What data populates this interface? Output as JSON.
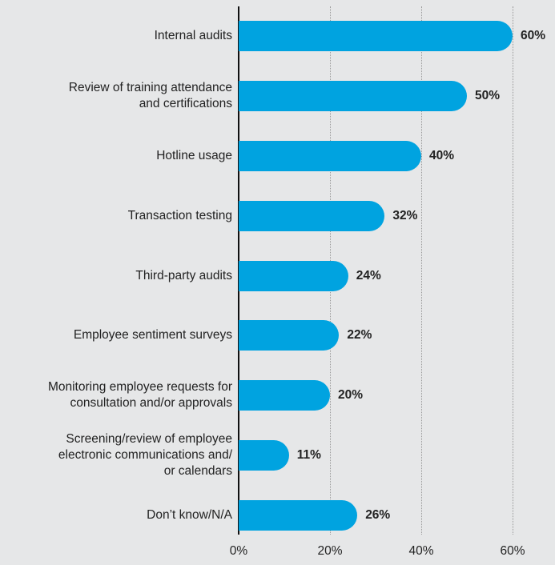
{
  "chart_data": {
    "type": "bar",
    "orientation": "horizontal",
    "categories": [
      "Internal audits",
      "Review of training attendance\nand certifications",
      "Hotline usage",
      "Transaction testing",
      "Third-party audits",
      "Employee sentiment surveys",
      "Monitoring employee requests for\nconsultation and/or approvals",
      "Screening/review of employee\nelectronic communications and/\nor calendars",
      "Don’t know/N/A"
    ],
    "values": [
      60,
      50,
      40,
      32,
      24,
      22,
      20,
      11,
      26
    ],
    "value_labels": [
      "60%",
      "50%",
      "40%",
      "32%",
      "24%",
      "22%",
      "20%",
      "11%",
      "26%"
    ],
    "color": "#00a3e0",
    "xlim": [
      0,
      60
    ],
    "xticks": [
      {
        "value": 0,
        "label": "0%"
      },
      {
        "value": 20,
        "label": "20%"
      },
      {
        "value": 40,
        "label": "40%"
      },
      {
        "value": 60,
        "label": "60%"
      }
    ],
    "grid": true
  }
}
